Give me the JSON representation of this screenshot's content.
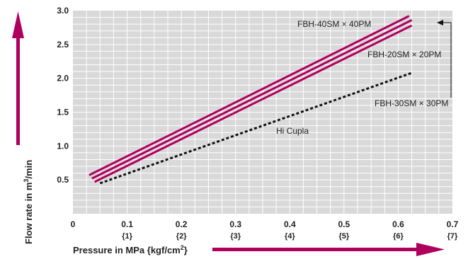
{
  "chart_data": {
    "type": "line",
    "xlabel": "Pressure in MPa {kgf/cm",
    "xlabel_sup": "2",
    "xlabel_end": "}",
    "ylabel": "Flow rate in m",
    "ylabel_sup": "3",
    "ylabel_end": "/min",
    "xlim": [
      0,
      0.7
    ],
    "ylim": [
      0,
      3.0
    ],
    "x_ticks": [
      "0",
      "0.1",
      "0.2",
      "0.3",
      "0.4",
      "0.5",
      "0.6",
      "0.7"
    ],
    "x_ticks_secondary": [
      "{1}",
      "{2}",
      "{3}",
      "{4}",
      "{5}",
      "{6}",
      "{7}"
    ],
    "y_ticks": [
      "0.5",
      "1.0",
      "1.5",
      "2.0",
      "2.5",
      "3.0"
    ],
    "grid": true,
    "series": [
      {
        "name": "FBH-40SM × 40PM",
        "color": "#b0005e",
        "style": "solid",
        "x": [
          0.03,
          0.62
        ],
        "y": [
          0.57,
          2.92
        ]
      },
      {
        "name": "FBH-20SM × 20PM",
        "color": "#b0005e",
        "style": "solid",
        "x": [
          0.035,
          0.625
        ],
        "y": [
          0.52,
          2.86
        ]
      },
      {
        "name": "FBH-30SM × 30PM",
        "color": "#b0005e",
        "style": "solid",
        "x": [
          0.04,
          0.625
        ],
        "y": [
          0.47,
          2.78
        ]
      },
      {
        "name": "Hi Cupla",
        "color": "#111111",
        "style": "dotted",
        "x": [
          0.05,
          0.625
        ],
        "y": [
          0.45,
          2.08
        ]
      }
    ]
  }
}
